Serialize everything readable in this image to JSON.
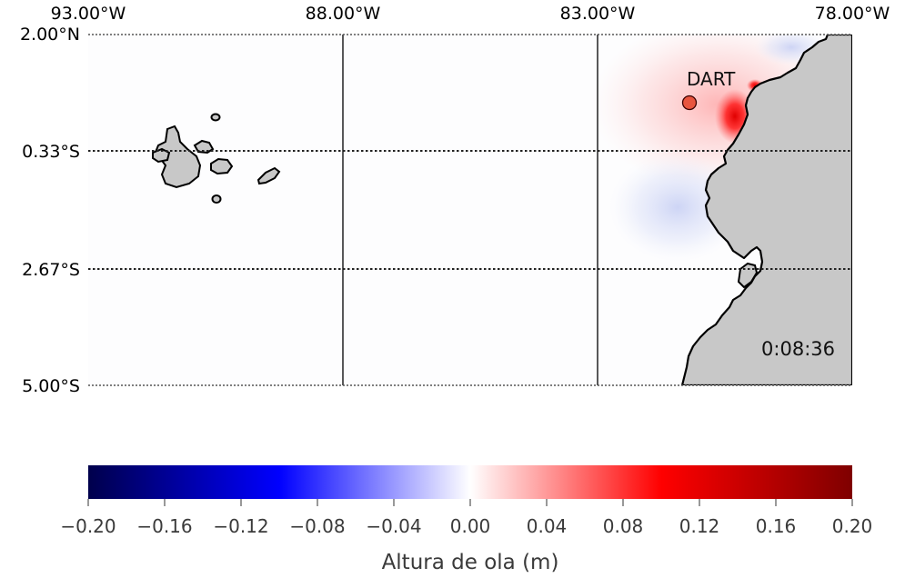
{
  "map": {
    "longitude_labels": [
      "93.00°W",
      "88.00°W",
      "83.00°W",
      "78.00°W"
    ],
    "latitude_labels": [
      "2.00°N",
      "0.33°S",
      "2.67°S",
      "5.00°S"
    ],
    "station_label": "DART",
    "time_label": "0:08:36",
    "land_color": "#c8c8c8",
    "coast_color": "#000000"
  },
  "colorbar": {
    "tick_labels": [
      "−0.20",
      "−0.16",
      "−0.12",
      "−0.08",
      "−0.04",
      "0.00",
      "0.04",
      "0.08",
      "0.12",
      "0.16",
      "0.20"
    ],
    "label": "Altura de ola (m)",
    "min": -0.2,
    "max": 0.2,
    "colors": [
      "#00004c",
      "#0000ff",
      "#ffffff",
      "#ff0000",
      "#7f0000"
    ]
  }
}
